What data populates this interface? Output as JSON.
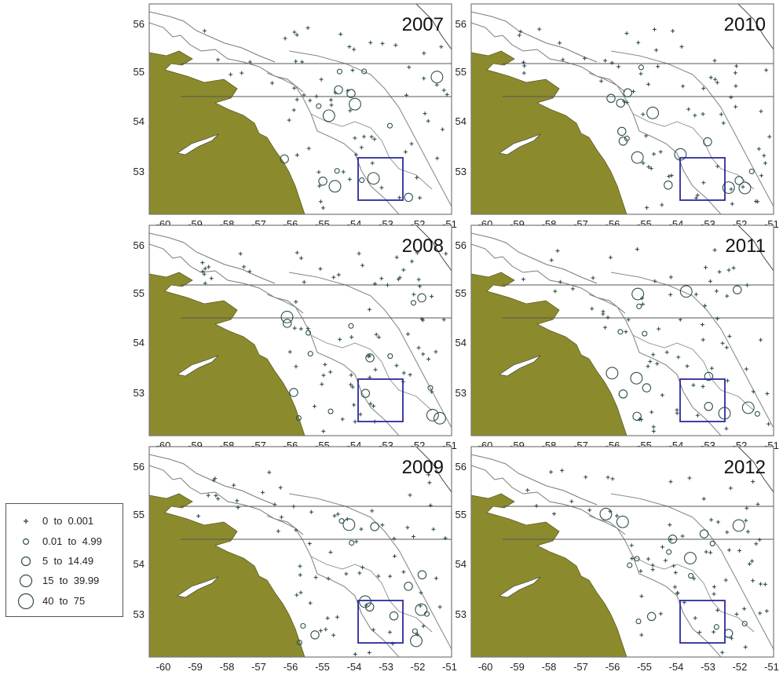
{
  "figure": {
    "lon_ticks": [
      "-60",
      "-59",
      "-58",
      "-57",
      "-56",
      "-55",
      "-54",
      "-53",
      "-52",
      "-51"
    ],
    "lat_ticks": [
      "56",
      "55",
      "54",
      "53"
    ],
    "colors": {
      "land": "#8B8B2E",
      "coast": "#7a7a7a",
      "isobath": "#8a8a8a",
      "station": "#2f4f4f",
      "survey_box": "#2b2b9a",
      "frame": "#777777"
    }
  },
  "panels": [
    {
      "year": "2007"
    },
    {
      "year": "2010"
    },
    {
      "year": "2008"
    },
    {
      "year": "2011"
    },
    {
      "year": "2009"
    },
    {
      "year": "2012"
    }
  ],
  "legend": {
    "items": [
      {
        "label": "0  to  0.001",
        "symbol": "plus"
      },
      {
        "label": "0.01  to  4.99",
        "symbol": "circle-xs"
      },
      {
        "label": "5  to  14.49",
        "symbol": "circle-s"
      },
      {
        "label": "15  to  39.99",
        "symbol": "circle-m"
      },
      {
        "label": "40  to  75",
        "symbol": "circle-l"
      }
    ]
  }
}
